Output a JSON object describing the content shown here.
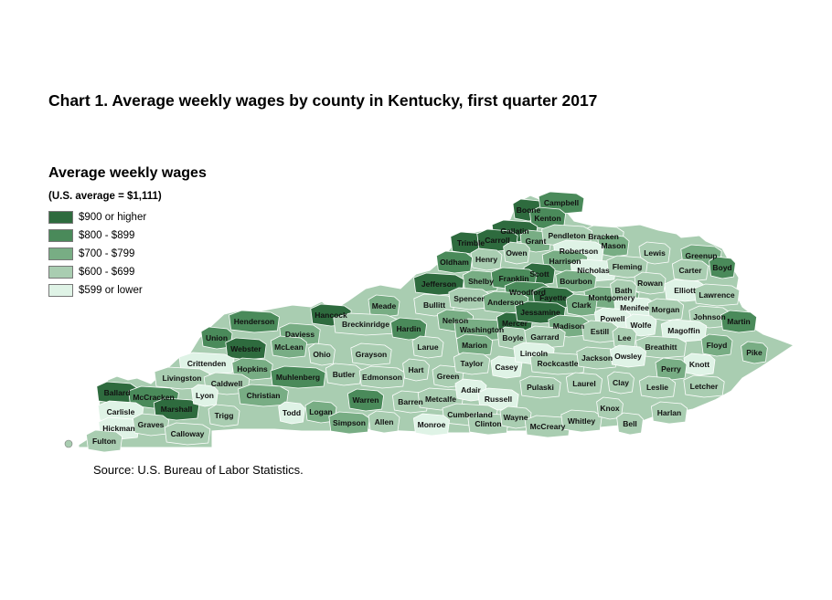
{
  "title": "Chart 1. Average weekly wages by county in Kentucky, first quarter 2017",
  "legend": {
    "title": "Average weekly wages",
    "subtitle": "(U.S. average = $1,111)",
    "items": [
      {
        "label": "$900 or higher",
        "color": "#2e6b3e"
      },
      {
        "label": "$800 - $899",
        "color": "#4a8a5a"
      },
      {
        "label": "$700 - $799",
        "color": "#78ad84"
      },
      {
        "label": "$600 - $699",
        "color": "#a9cdb1"
      },
      {
        "label": "$599 or lower",
        "color": "#dff3e6"
      }
    ]
  },
  "source": "Source: U.S. Bureau of Labor Statistics.",
  "map": {
    "outline_color": "#ffffff",
    "counties": [
      {
        "name": "Boone",
        "class": 0
      },
      {
        "name": "Campbell",
        "class": 1
      },
      {
        "name": "Kenton",
        "class": 1
      },
      {
        "name": "Gallatin",
        "class": 0
      },
      {
        "name": "Bracken",
        "class": 3
      },
      {
        "name": "Trimble",
        "class": 0
      },
      {
        "name": "Carroll",
        "class": 0
      },
      {
        "name": "Grant",
        "class": 2
      },
      {
        "name": "Pendleton",
        "class": 3
      },
      {
        "name": "Mason",
        "class": 2
      },
      {
        "name": "Robertson",
        "class": 4
      },
      {
        "name": "Lewis",
        "class": 3
      },
      {
        "name": "Greenup",
        "class": 2
      },
      {
        "name": "Henry",
        "class": 3
      },
      {
        "name": "Owen",
        "class": 3
      },
      {
        "name": "Harrison",
        "class": 2
      },
      {
        "name": "Nicholas",
        "class": 4
      },
      {
        "name": "Fleming",
        "class": 3
      },
      {
        "name": "Carter",
        "class": 3
      },
      {
        "name": "Boyd",
        "class": 1
      },
      {
        "name": "Oldham",
        "class": 1
      },
      {
        "name": "Scott",
        "class": 0
      },
      {
        "name": "Bourbon",
        "class": 2
      },
      {
        "name": "Rowan",
        "class": 3
      },
      {
        "name": "Elliott",
        "class": 4
      },
      {
        "name": "Jefferson",
        "class": 0
      },
      {
        "name": "Shelby",
        "class": 2
      },
      {
        "name": "Franklin",
        "class": 1
      },
      {
        "name": "Woodford",
        "class": 1
      },
      {
        "name": "Fayette",
        "class": 0
      },
      {
        "name": "Montgomery",
        "class": 2
      },
      {
        "name": "Bath",
        "class": 3
      },
      {
        "name": "Menifee",
        "class": 4
      },
      {
        "name": "Morgan",
        "class": 3
      },
      {
        "name": "Lawrence",
        "class": 3
      },
      {
        "name": "Meade",
        "class": 2
      },
      {
        "name": "Bullitt",
        "class": 3
      },
      {
        "name": "Spencer",
        "class": 3
      },
      {
        "name": "Anderson",
        "class": 2
      },
      {
        "name": "Clark",
        "class": 2
      },
      {
        "name": "Powell",
        "class": 4
      },
      {
        "name": "Johnson",
        "class": 3
      },
      {
        "name": "Martin",
        "class": 1
      },
      {
        "name": "Hancock",
        "class": 0
      },
      {
        "name": "Breckinridge",
        "class": 3
      },
      {
        "name": "Henderson",
        "class": 1
      },
      {
        "name": "Daviess",
        "class": 2
      },
      {
        "name": "Hardin",
        "class": 1
      },
      {
        "name": "Nelson",
        "class": 2
      },
      {
        "name": "Washington",
        "class": 2
      },
      {
        "name": "Mercer",
        "class": 0
      },
      {
        "name": "Jessamine",
        "class": 0
      },
      {
        "name": "Madison",
        "class": 2
      },
      {
        "name": "Estill",
        "class": 3
      },
      {
        "name": "Wolfe",
        "class": 4
      },
      {
        "name": "Magoffin",
        "class": 4
      },
      {
        "name": "Floyd",
        "class": 2
      },
      {
        "name": "Pike",
        "class": 2
      },
      {
        "name": "Union",
        "class": 1
      },
      {
        "name": "Webster",
        "class": 0
      },
      {
        "name": "McLean",
        "class": 2
      },
      {
        "name": "Ohio",
        "class": 3
      },
      {
        "name": "Grayson",
        "class": 3
      },
      {
        "name": "Larue",
        "class": 3
      },
      {
        "name": "Marion",
        "class": 2
      },
      {
        "name": "Boyle",
        "class": 3
      },
      {
        "name": "Garrard",
        "class": 3
      },
      {
        "name": "Lee",
        "class": 3
      },
      {
        "name": "Breathitt",
        "class": 3
      },
      {
        "name": "Knott",
        "class": 4
      },
      {
        "name": "Crittenden",
        "class": 4
      },
      {
        "name": "Hopkins",
        "class": 2
      },
      {
        "name": "Muhlenberg",
        "class": 1
      },
      {
        "name": "Butler",
        "class": 3
      },
      {
        "name": "Edmonson",
        "class": 3
      },
      {
        "name": "Hart",
        "class": 3
      },
      {
        "name": "Green",
        "class": 3
      },
      {
        "name": "Taylor",
        "class": 3
      },
      {
        "name": "Casey",
        "class": 4
      },
      {
        "name": "Lincoln",
        "class": 4
      },
      {
        "name": "Rockcastle",
        "class": 3
      },
      {
        "name": "Jackson",
        "class": 3
      },
      {
        "name": "Owsley",
        "class": 4
      },
      {
        "name": "Perry",
        "class": 2
      },
      {
        "name": "Livingston",
        "class": 3
      },
      {
        "name": "Caldwell",
        "class": 3
      },
      {
        "name": "Christian",
        "class": 2
      },
      {
        "name": "Warren",
        "class": 1
      },
      {
        "name": "Barren",
        "class": 3
      },
      {
        "name": "Metcalfe",
        "class": 3
      },
      {
        "name": "Adair",
        "class": 4
      },
      {
        "name": "Russell",
        "class": 4
      },
      {
        "name": "Pulaski",
        "class": 3
      },
      {
        "name": "Laurel",
        "class": 3
      },
      {
        "name": "Clay",
        "class": 3
      },
      {
        "name": "Leslie",
        "class": 3
      },
      {
        "name": "Letcher",
        "class": 3
      },
      {
        "name": "Ballard",
        "class": 0
      },
      {
        "name": "McCracken",
        "class": 1
      },
      {
        "name": "Marshall",
        "class": 0
      },
      {
        "name": "Lyon",
        "class": 4
      },
      {
        "name": "Trigg",
        "class": 3
      },
      {
        "name": "Todd",
        "class": 4
      },
      {
        "name": "Logan",
        "class": 2
      },
      {
        "name": "Simpson",
        "class": 2
      },
      {
        "name": "Allen",
        "class": 3
      },
      {
        "name": "Cumberland",
        "class": 3
      },
      {
        "name": "Monroe",
        "class": 4
      },
      {
        "name": "Clinton",
        "class": 3
      },
      {
        "name": "Wayne",
        "class": 3
      },
      {
        "name": "McCreary",
        "class": 3
      },
      {
        "name": "Whitley",
        "class": 3
      },
      {
        "name": "Knox",
        "class": 3
      },
      {
        "name": "Bell",
        "class": 3
      },
      {
        "name": "Harlan",
        "class": 3
      },
      {
        "name": "Carlisle",
        "class": 4
      },
      {
        "name": "Hickman",
        "class": 4
      },
      {
        "name": "Graves",
        "class": 3
      },
      {
        "name": "Calloway",
        "class": 3
      },
      {
        "name": "Fulton",
        "class": 3
      }
    ]
  }
}
